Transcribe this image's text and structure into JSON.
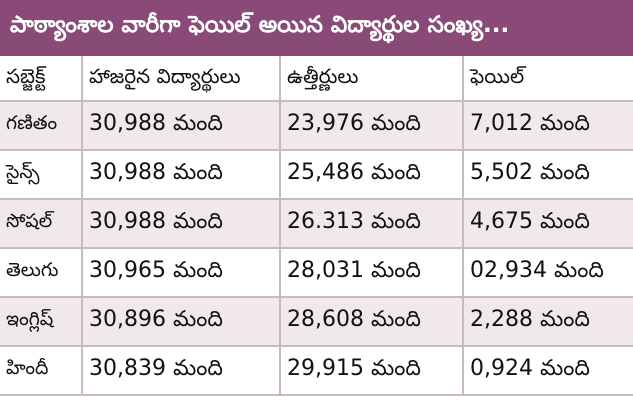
{
  "title": "పాఠ్యాంశాల వారీగా ఫెయిల్ అయిన విద్యార్థుల సంఖ్య...",
  "columns": [
    "సబ్జెక్ట్",
    "హాజరైన విద్యార్థులు",
    "ఉత్తీర్ణులు",
    "ఫెయిల్"
  ],
  "rows": [
    {
      "subject": "గణితం",
      "appeared": "30,988 మంది",
      "passed": "23,976 మంది",
      "failed": "7,012 మంది"
    },
    {
      "subject": "సైన్స్",
      "appeared": "30,988 మంది",
      "passed": "25,486 మంది",
      "failed": "5,502 మంది"
    },
    {
      "subject": "సోషల్",
      "appeared": "30,988 మంది",
      "passed": "26.313 మంది",
      "failed": "4,675 మంది"
    },
    {
      "subject": "తెలుగు",
      "appeared": "30,965 మంది",
      "passed": "28,031 మంది",
      "failed": "02,934 మంది"
    },
    {
      "subject": "ఇంగ్లిష్",
      "appeared": "30,896 మంది",
      "passed": "28,608 మంది",
      "failed": "2,288 మంది"
    },
    {
      "subject": "హిందీ",
      "appeared": "30,839 మంది",
      "passed": "29,915 మంది",
      "failed": "0,924 మంది"
    }
  ],
  "colors": {
    "title_bg": "#8a4a78",
    "row_alt": "#f1e8ee",
    "border": "#c9b9c4"
  }
}
